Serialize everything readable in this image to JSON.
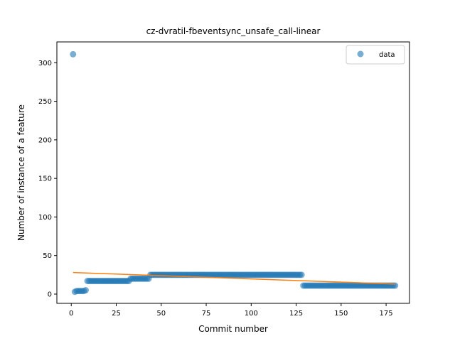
{
  "chart_data": {
    "type": "scatter",
    "title": "cz-dvratil-fbeventsync_unsafe_call-linear",
    "xlabel": "Commit number",
    "ylabel": "Number of instance of a feature",
    "xlim": [
      -8,
      188
    ],
    "ylim": [
      -12,
      327
    ],
    "xticks": [
      0,
      25,
      50,
      75,
      100,
      125,
      150,
      175
    ],
    "yticks": [
      0,
      50,
      100,
      150,
      200,
      250,
      300
    ],
    "grid": false,
    "legend_position": "top-right",
    "series": [
      {
        "name": "data",
        "kind": "scatter",
        "color": "#1f77b4",
        "alpha": 0.6,
        "points": [
          {
            "x_from": 1,
            "x_to": 1,
            "y": 311
          },
          {
            "x_from": 2,
            "x_to": 2,
            "y": 3
          },
          {
            "x_from": 3,
            "x_to": 7,
            "y": 4
          },
          {
            "x_from": 8,
            "x_to": 8,
            "y": 5
          },
          {
            "x_from": 9,
            "x_to": 32,
            "y": 17
          },
          {
            "x_from": 33,
            "x_to": 43,
            "y": 20
          },
          {
            "x_from": 44,
            "x_to": 128,
            "y": 25
          },
          {
            "x_from": 129,
            "x_to": 180,
            "y": 11
          }
        ]
      },
      {
        "name": "",
        "kind": "line",
        "color": "#ff7f0e",
        "x": [
          1,
          180
        ],
        "y": [
          28,
          13
        ]
      }
    ]
  }
}
